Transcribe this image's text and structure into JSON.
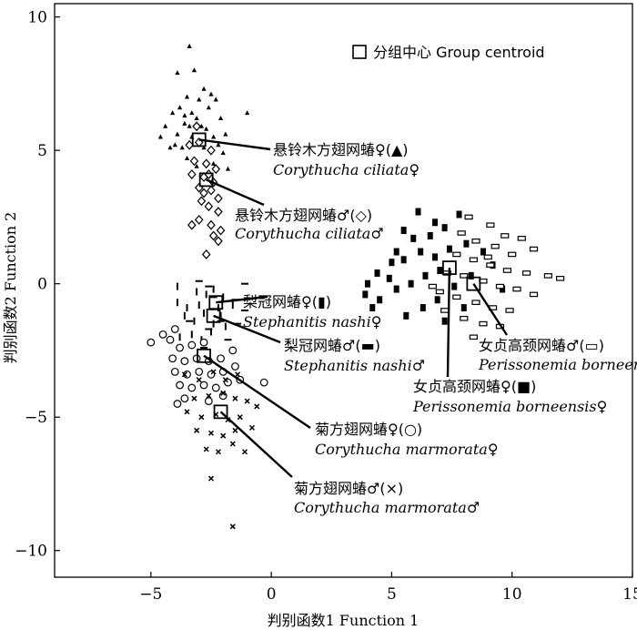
{
  "chart_data": {
    "type": "scatter",
    "xlabel": "判别函数1 Function 1",
    "ylabel": "判别函数2 Function 2",
    "xlim": [
      -9,
      15
    ],
    "ylim": [
      -11,
      10.5
    ],
    "xticks": [
      -5,
      0,
      5,
      10,
      15
    ],
    "yticks": [
      -10,
      -5,
      0,
      5,
      10
    ],
    "xtick_labels": [
      "−5",
      "0",
      "5",
      "10",
      "15"
    ],
    "ytick_labels": [
      "−10",
      "−5",
      "0",
      "5",
      "10"
    ],
    "grid": false,
    "legend": {
      "position": "top-right",
      "label": "分组中心 Group centroid"
    },
    "series": [
      {
        "name": "悬铃木方翅网蝽♀(▲) Corythucha ciliata♀",
        "marker": "triangle",
        "centroid": [
          -3,
          5.4
        ],
        "points": [
          [
            -3.4,
            8.9
          ],
          [
            -3.9,
            7.9
          ],
          [
            -3.2,
            8.0
          ],
          [
            -2.8,
            7.3
          ],
          [
            -3.5,
            7.0
          ],
          [
            -3.0,
            6.9
          ],
          [
            -2.5,
            7.1
          ],
          [
            -3.8,
            6.6
          ],
          [
            -4.1,
            6.4
          ],
          [
            -3.3,
            6.4
          ],
          [
            -2.6,
            6.6
          ],
          [
            -2.3,
            6.9
          ],
          [
            -3.6,
            6.0
          ],
          [
            -4.4,
            5.9
          ],
          [
            -2.9,
            5.9
          ],
          [
            -2.1,
            6.2
          ],
          [
            -3.9,
            5.6
          ],
          [
            -4.6,
            5.5
          ],
          [
            -3.3,
            5.5
          ],
          [
            -2.4,
            5.5
          ],
          [
            -1.9,
            5.6
          ],
          [
            -3.7,
            5.1
          ],
          [
            -2.8,
            5.1
          ],
          [
            -2.0,
            4.9
          ],
          [
            -3.5,
            4.7
          ],
          [
            -2.4,
            4.5
          ],
          [
            -1.8,
            4.3
          ],
          [
            -1.0,
            6.4
          ],
          [
            -4.2,
            5.1
          ],
          [
            -3.1,
            6.2
          ],
          [
            -2.7,
            5.8
          ],
          [
            -3.4,
            5.9
          ],
          [
            -3.6,
            6.3
          ],
          [
            -2.2,
            5.2
          ],
          [
            -4.0,
            5.2
          ],
          [
            -3.1,
            4.4
          ]
        ]
      },
      {
        "name": "悬铃木方翅网蝽♂(◇) Corythucha ciliata♂",
        "marker": "diamond",
        "centroid": [
          -2.7,
          3.9
        ],
        "points": [
          [
            -3.1,
            5.9
          ],
          [
            -3.0,
            5.3
          ],
          [
            -3.4,
            5.2
          ],
          [
            -2.5,
            5.0
          ],
          [
            -3.2,
            4.6
          ],
          [
            -2.7,
            4.5
          ],
          [
            -2.3,
            4.3
          ],
          [
            -3.3,
            4.1
          ],
          [
            -2.8,
            4.0
          ],
          [
            -2.4,
            3.8
          ],
          [
            -3.0,
            3.6
          ],
          [
            -2.5,
            3.5
          ],
          [
            -2.2,
            3.2
          ],
          [
            -2.9,
            3.1
          ],
          [
            -2.6,
            2.9
          ],
          [
            -2.2,
            2.7
          ],
          [
            -3.0,
            2.4
          ],
          [
            -2.5,
            2.2
          ],
          [
            -2.1,
            2.0
          ],
          [
            -3.3,
            2.2
          ],
          [
            -2.4,
            1.8
          ],
          [
            -2.7,
            1.1
          ],
          [
            -2.2,
            1.6
          ],
          [
            -2.8,
            3.4
          ],
          [
            -2.6,
            4.1
          ]
        ]
      },
      {
        "name": "梨冠网蝽♀(▮) Stephanitis nashi♀",
        "marker": "bar",
        "centroid": [
          -2.3,
          -0.7
        ],
        "points": [
          [
            -3.9,
            -0.1
          ],
          [
            -3.9,
            -0.7
          ],
          [
            -3.5,
            -0.9
          ],
          [
            -3.1,
            -0.3
          ],
          [
            -2.7,
            -0.4
          ],
          [
            -2.4,
            -0.2
          ],
          [
            -2.0,
            -0.5
          ],
          [
            -1.6,
            -0.8
          ],
          [
            -3.6,
            -1.2
          ],
          [
            -3.2,
            -1.4
          ],
          [
            -2.8,
            -1.1
          ],
          [
            -2.4,
            -1.5
          ],
          [
            -3.3,
            -1.9
          ],
          [
            -2.9,
            -2.1
          ],
          [
            -2.5,
            -1.8
          ],
          [
            -2.1,
            -1.2
          ],
          [
            -3.8,
            -2.0
          ],
          [
            -3.0,
            -0.8
          ],
          [
            -2.2,
            -0.9
          ],
          [
            -1.9,
            -1.6
          ]
        ]
      },
      {
        "name": "梨冠网蝽♂(▬) Stephanitis nashi♂",
        "marker": "dash",
        "centroid": [
          -2.4,
          -1.2
        ],
        "points": [
          [
            -3.0,
            0.1
          ],
          [
            -2.6,
            -0.1
          ],
          [
            -2.4,
            -0.5
          ],
          [
            -1.5,
            -0.6
          ],
          [
            -1.1,
            0.0
          ],
          [
            -1.1,
            -1.0
          ],
          [
            -2.1,
            -1.4
          ],
          [
            -1.8,
            -2.1
          ],
          [
            -2.8,
            -2.4
          ],
          [
            -1.4,
            -1.5
          ],
          [
            -2.6,
            -1.7
          ],
          [
            -3.4,
            -1.4
          ]
        ]
      },
      {
        "name": "菊方翅网蝽♀(○) Corythucha marmorata♀",
        "marker": "circle",
        "centroid": [
          -2.8,
          -2.7
        ],
        "points": [
          [
            -5.0,
            -2.2
          ],
          [
            -4.0,
            -1.7
          ],
          [
            -4.2,
            -2.1
          ],
          [
            -3.8,
            -2.4
          ],
          [
            -3.3,
            -2.3
          ],
          [
            -2.8,
            -2.2
          ],
          [
            -4.1,
            -2.8
          ],
          [
            -3.6,
            -2.9
          ],
          [
            -3.1,
            -2.8
          ],
          [
            -2.6,
            -2.9
          ],
          [
            -2.1,
            -2.8
          ],
          [
            -4.0,
            -3.3
          ],
          [
            -3.5,
            -3.4
          ],
          [
            -3.0,
            -3.3
          ],
          [
            -2.5,
            -3.4
          ],
          [
            -2.0,
            -3.3
          ],
          [
            -1.5,
            -3.1
          ],
          [
            -3.8,
            -3.8
          ],
          [
            -3.3,
            -3.9
          ],
          [
            -2.8,
            -3.8
          ],
          [
            -2.3,
            -3.9
          ],
          [
            -1.8,
            -3.7
          ],
          [
            -1.3,
            -3.6
          ],
          [
            -3.6,
            -4.3
          ],
          [
            -2.6,
            -4.4
          ],
          [
            -2.0,
            -4.2
          ],
          [
            -3.9,
            -4.5
          ],
          [
            -0.3,
            -3.7
          ],
          [
            -4.5,
            -1.9
          ],
          [
            -1.6,
            -2.5
          ]
        ]
      },
      {
        "name": "菊方翅网蝽♂(×) Corythucha marmorata♂",
        "marker": "cross",
        "centroid": [
          -2.1,
          -4.8
        ],
        "points": [
          [
            -3.6,
            -3.4
          ],
          [
            -3.0,
            -3.6
          ],
          [
            -2.4,
            -3.3
          ],
          [
            -1.9,
            -3.6
          ],
          [
            -1.4,
            -3.4
          ],
          [
            -3.2,
            -4.3
          ],
          [
            -2.6,
            -4.2
          ],
          [
            -2.0,
            -4.1
          ],
          [
            -1.5,
            -4.3
          ],
          [
            -1.0,
            -4.4
          ],
          [
            -3.5,
            -4.8
          ],
          [
            -2.9,
            -5.0
          ],
          [
            -2.3,
            -4.9
          ],
          [
            -1.8,
            -5.1
          ],
          [
            -1.3,
            -5.0
          ],
          [
            -3.1,
            -5.5
          ],
          [
            -2.5,
            -5.6
          ],
          [
            -2.0,
            -5.7
          ],
          [
            -1.5,
            -5.5
          ],
          [
            -2.7,
            -6.2
          ],
          [
            -2.2,
            -6.3
          ],
          [
            -1.6,
            -6.0
          ],
          [
            -0.8,
            -5.4
          ],
          [
            -1.1,
            -6.3
          ],
          [
            -2.5,
            -7.3
          ],
          [
            -1.6,
            -9.1
          ],
          [
            -0.6,
            -4.6
          ]
        ]
      },
      {
        "name": "女贞高颈网蝽♀(■) Perissonemia borneensis♀",
        "marker": "square",
        "centroid": [
          7.4,
          0.6
        ],
        "points": [
          [
            6.1,
            2.7
          ],
          [
            6.8,
            2.3
          ],
          [
            5.5,
            2.0
          ],
          [
            5.9,
            1.7
          ],
          [
            6.6,
            1.8
          ],
          [
            7.2,
            2.1
          ],
          [
            7.8,
            2.6
          ],
          [
            8.1,
            1.5
          ],
          [
            7.4,
            1.3
          ],
          [
            6.8,
            1.0
          ],
          [
            6.2,
            1.2
          ],
          [
            5.5,
            0.9
          ],
          [
            5.0,
            0.8
          ],
          [
            4.9,
            0.2
          ],
          [
            4.4,
            0.4
          ],
          [
            4.0,
            0.0
          ],
          [
            3.9,
            -0.4
          ],
          [
            4.5,
            -0.6
          ],
          [
            5.2,
            -0.2
          ],
          [
            5.8,
            0.0
          ],
          [
            6.4,
            0.3
          ],
          [
            7.0,
            0.5
          ],
          [
            7.6,
            -0.1
          ],
          [
            6.9,
            -0.6
          ],
          [
            6.3,
            -0.9
          ],
          [
            5.6,
            -1.2
          ],
          [
            7.2,
            -1.4
          ],
          [
            8.0,
            -0.9
          ],
          [
            8.3,
            0.3
          ],
          [
            8.8,
            1.2
          ],
          [
            9.2,
            0.7
          ],
          [
            9.6,
            -0.2
          ],
          [
            5.2,
            1.2
          ],
          [
            4.2,
            -0.9
          ]
        ]
      },
      {
        "name": "女贞高颈网蝽♂(▭) Perissonemia borneensis♂",
        "marker": "dash-box",
        "centroid": [
          8.4,
          0.0
        ],
        "points": [
          [
            8.2,
            2.5
          ],
          [
            9.1,
            2.2
          ],
          [
            9.7,
            1.8
          ],
          [
            10.4,
            1.7
          ],
          [
            7.9,
            1.9
          ],
          [
            8.5,
            1.6
          ],
          [
            9.3,
            1.4
          ],
          [
            10.0,
            1.1
          ],
          [
            10.9,
            1.3
          ],
          [
            7.7,
            1.1
          ],
          [
            8.4,
            0.9
          ],
          [
            9.1,
            0.7
          ],
          [
            9.8,
            0.5
          ],
          [
            10.6,
            0.4
          ],
          [
            11.5,
            0.3
          ],
          [
            12.0,
            0.2
          ],
          [
            7.3,
            0.4
          ],
          [
            8.0,
            0.3
          ],
          [
            8.8,
            0.1
          ],
          [
            9.5,
            -0.1
          ],
          [
            10.2,
            -0.2
          ],
          [
            10.9,
            -0.4
          ],
          [
            7.0,
            -0.3
          ],
          [
            7.7,
            -0.5
          ],
          [
            8.5,
            -0.7
          ],
          [
            9.2,
            -0.9
          ],
          [
            9.9,
            -1.0
          ],
          [
            8.0,
            -1.3
          ],
          [
            8.8,
            -1.5
          ],
          [
            9.5,
            -1.6
          ],
          [
            8.4,
            -2.0
          ],
          [
            7.2,
            -1.0
          ],
          [
            6.7,
            -0.1
          ],
          [
            9.0,
            1.0
          ]
        ]
      }
    ],
    "annotations": [
      {
        "cn": "悬铃木方翅网蝽♀(▲)",
        "en": "Corythucha ciliata♀",
        "target": [
          -3,
          5.4
        ]
      },
      {
        "cn": "悬铃木方翅网蝽♂(◇)",
        "en": "Corythucha ciliata♂",
        "target": [
          -2.7,
          3.9
        ]
      },
      {
        "cn": "梨冠网蝽♀(▮)",
        "en": "Stephanitis nashi♀",
        "target": [
          -2.3,
          -0.7
        ]
      },
      {
        "cn": "梨冠网蝽♂(▬)",
        "en": "Stephanitis nashi♂",
        "target": [
          -2.4,
          -1.2
        ]
      },
      {
        "cn": "女贞高颈网蝽♂(▭)",
        "en": "Perissonemia borneensis♂",
        "target": [
          8.4,
          0.0
        ]
      },
      {
        "cn": "女贞高颈网蝽♀(■)",
        "en": "Perissonemia borneensis♀",
        "target": [
          7.4,
          0.6
        ]
      },
      {
        "cn": "菊方翅网蝽♀(○)",
        "en": "Corythucha marmorata♀",
        "target": [
          -2.8,
          -2.7
        ]
      },
      {
        "cn": "菊方翅网蝽♂(×)",
        "en": "Corythucha marmorata♂",
        "target": [
          -2.1,
          -4.8
        ]
      }
    ]
  }
}
